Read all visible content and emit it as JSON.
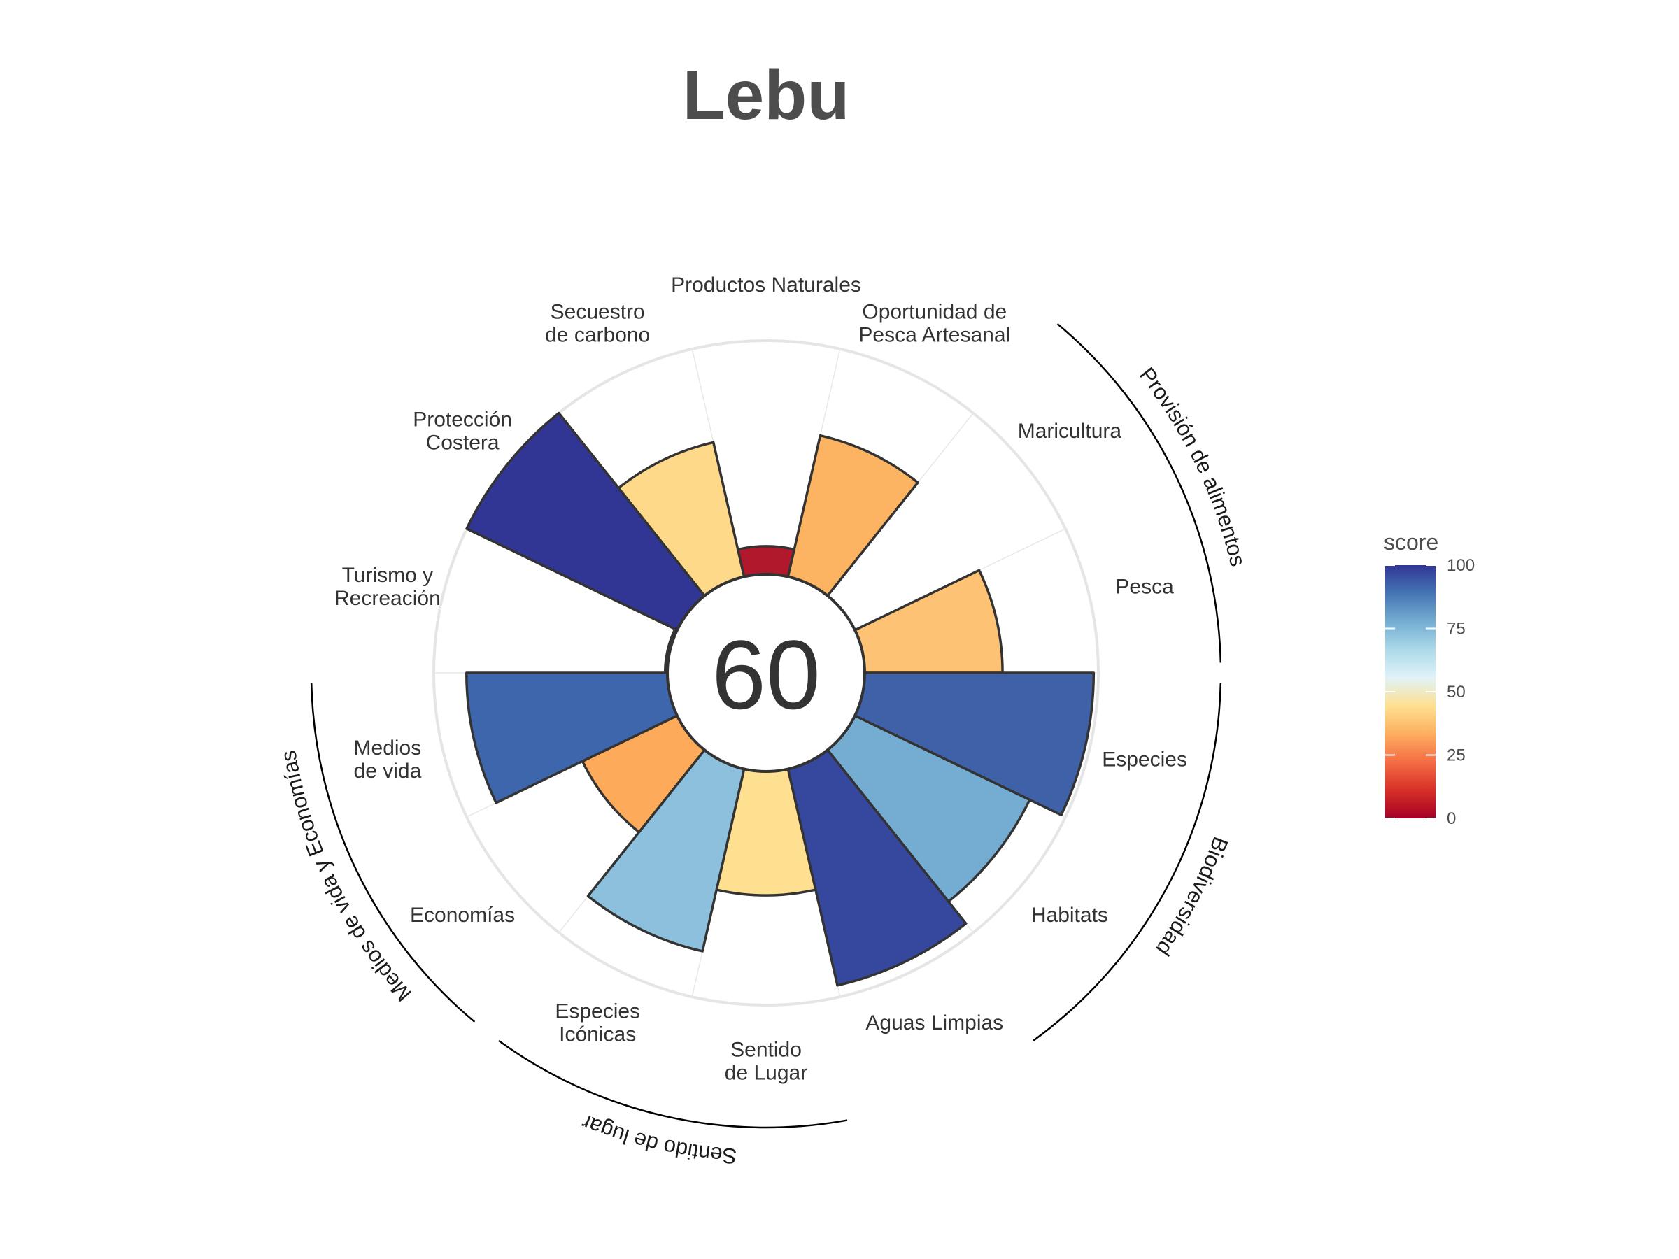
{
  "title": "Lebu",
  "center_score": "60",
  "chart_data": {
    "type": "polar-bar",
    "title": "Lebu",
    "ylim": [
      0,
      100
    ],
    "categories": [
      "Productos Naturales",
      "Oportunidad de Pesca Artesanal",
      "Maricultura",
      "Pesca",
      "Especies",
      "Habitats",
      "Aguas Limpias",
      "Sentido de Lugar",
      "Especies Icónicas",
      "Economías",
      "Medios de vida",
      "Turismo y Recreación",
      "Protección Costera",
      "Secuestro de carbono"
    ],
    "label_lines": [
      [
        "Productos Naturales"
      ],
      [
        "Oportunidad de",
        "Pesca Artesanal"
      ],
      [
        "Maricultura"
      ],
      [
        "Pesca"
      ],
      [
        "Especies"
      ],
      [
        "Habitats"
      ],
      [
        "Aguas Limpias"
      ],
      [
        "Sentido",
        "de Lugar"
      ],
      [
        "Especies",
        "Icónicas"
      ],
      [
        "Economías"
      ],
      [
        "Medios",
        "de vida"
      ],
      [
        "Turismo y",
        "Recreación"
      ],
      [
        "Protección",
        "Costera"
      ],
      [
        "Secuestro",
        "de carbono"
      ]
    ],
    "values": [
      12,
      62,
      0,
      59,
      98,
      83,
      95,
      53,
      80,
      45,
      86,
      1,
      100,
      59
    ],
    "colors": [
      "#b2182b",
      "#fdb462",
      "#ffffff",
      "#fdc274",
      "#3f61a8",
      "#74add1",
      "#36489e",
      "#fee090",
      "#8cc0dd",
      "#fdab5a",
      "#3e66ad",
      "#a50026",
      "#313695",
      "#fed98a"
    ],
    "groups": [
      {
        "name": "Provisión de alimentos"
      },
      {
        "name": "Biodiversidad"
      },
      {
        "name": "Sentido de lugar"
      },
      {
        "name": "Medios de vida y Economías"
      }
    ],
    "legend": {
      "title": "score",
      "ticks": [
        "100",
        "75",
        "50",
        "25",
        "0"
      ],
      "stops": [
        "#a50026",
        "#d73027",
        "#f46d43",
        "#fdae61",
        "#fee090",
        "#e0f3f8",
        "#abd9e9",
        "#74add1",
        "#4575b4",
        "#313695"
      ]
    }
  }
}
